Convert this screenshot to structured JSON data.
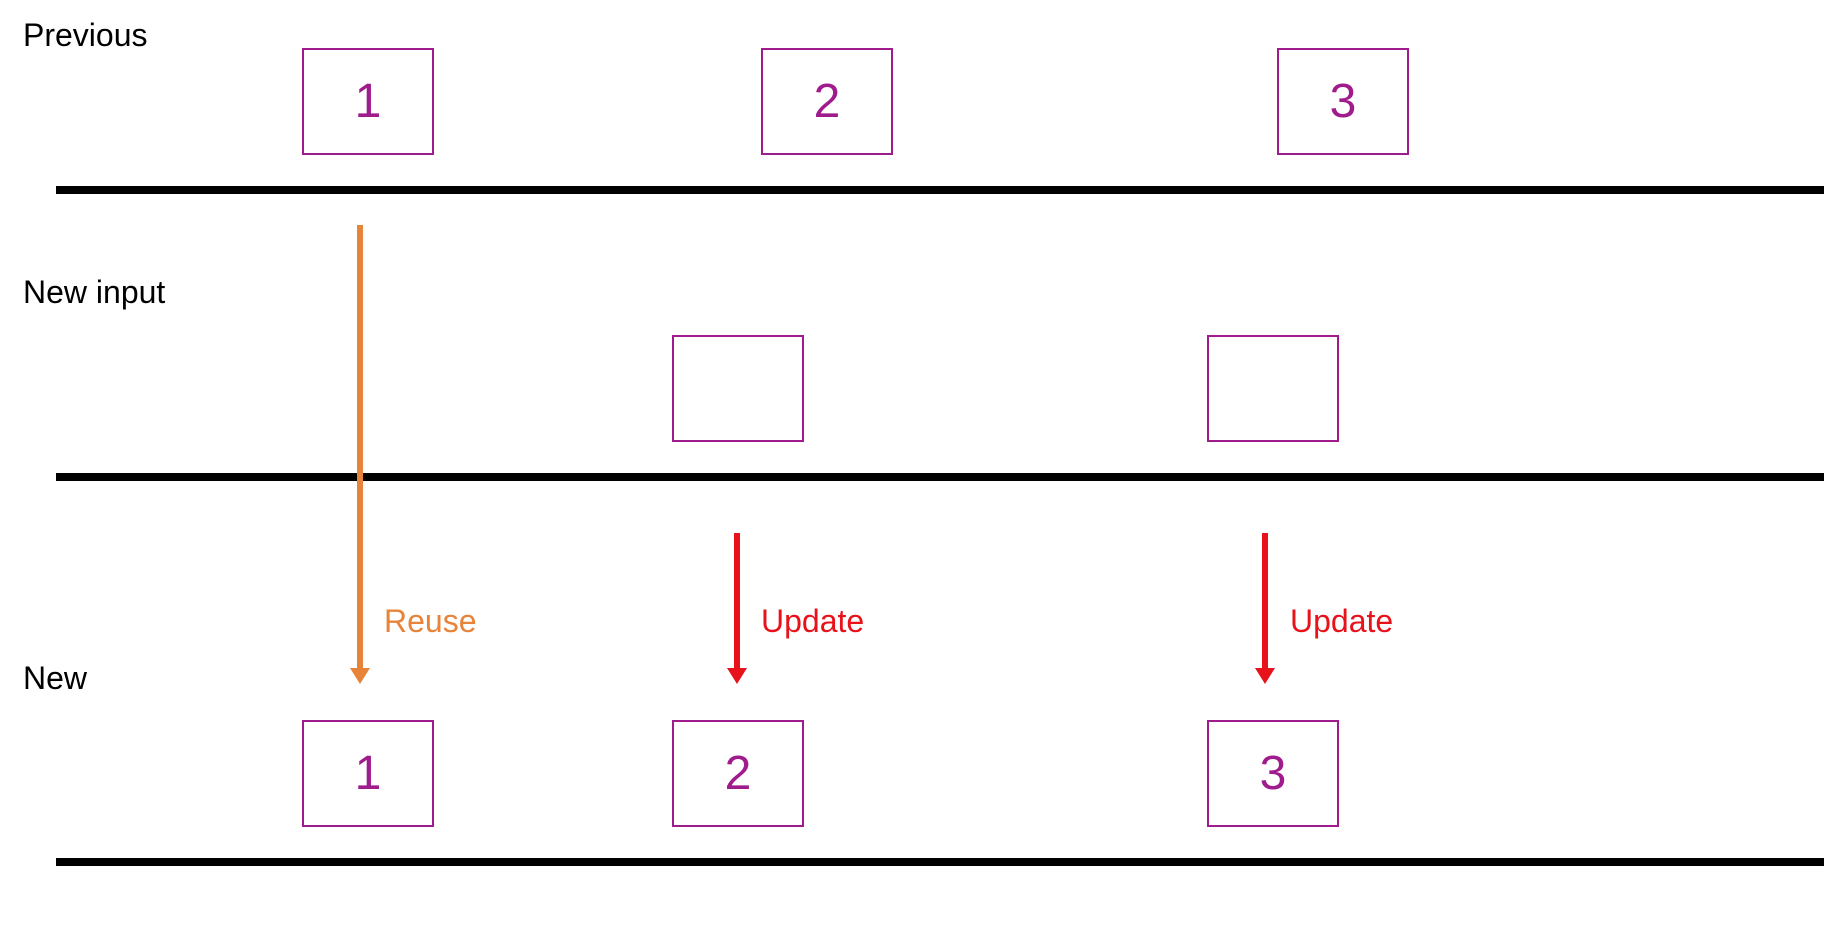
{
  "rows": {
    "previous": {
      "label": "Previous"
    },
    "new_input": {
      "label": "New input"
    },
    "new": {
      "label": "New"
    }
  },
  "previous_boxes": [
    {
      "text": "1"
    },
    {
      "text": "2"
    },
    {
      "text": "3"
    }
  ],
  "new_input_boxes": [
    {
      "text": ""
    },
    {
      "text": ""
    }
  ],
  "new_boxes": [
    {
      "text": "1"
    },
    {
      "text": "2"
    },
    {
      "text": "3"
    }
  ],
  "arrows": {
    "reuse": {
      "label": "Reuse",
      "color": "#e8843a"
    },
    "update_2": {
      "label": "Update",
      "color": "#e8121b"
    },
    "update_3": {
      "label": "Update",
      "color": "#e8121b"
    }
  },
  "colors": {
    "box_stroke": "#a01b8c",
    "box_text": "#a01b8c",
    "divider": "#000000"
  }
}
